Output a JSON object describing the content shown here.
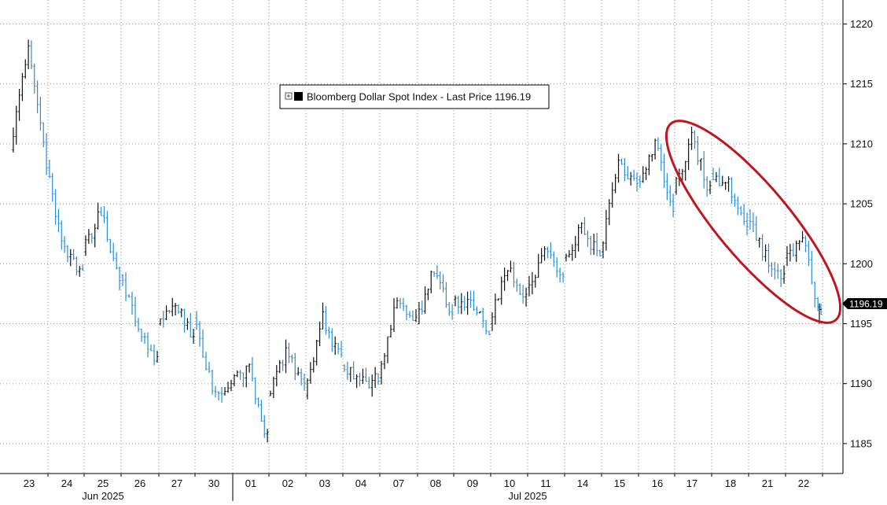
{
  "chart_data": {
    "type": "candlestick",
    "legend": {
      "label": "Bloomberg Dollar Spot Index - Last Price 1196.19",
      "placement": "top-center"
    },
    "last_price": 1196.19,
    "last_price_label": "1196.19",
    "y_axis": {
      "position": "right",
      "range": [
        1182.5,
        1222
      ],
      "ticks": [
        1185,
        1190,
        1195,
        1200,
        1205,
        1210,
        1215,
        1220
      ],
      "tick_labels": [
        "1185",
        "1190",
        "1195",
        "1200",
        "1205",
        "1210",
        "1215",
        "1220"
      ]
    },
    "x_axis": {
      "day_labels": [
        "23",
        "24",
        "25",
        "26",
        "27",
        "30",
        "01",
        "02",
        "03",
        "04",
        "07",
        "08",
        "09",
        "10",
        "11",
        "14",
        "15",
        "16",
        "17",
        "18",
        "21",
        "22"
      ],
      "month_labels": [
        "Jun 2025",
        "Jul 2025"
      ]
    },
    "grid": "dotted",
    "annotation": {
      "shape": "ellipse",
      "color": "#c0161d",
      "note": "highlights decline from 17 to 22"
    },
    "colors": {
      "up": "#111111",
      "down": "#2b8ed6",
      "annotation": "#c0161d"
    },
    "daily_path": [
      [
        1209.5,
        1218.5,
        1208.0
      ],
      [
        1208.0,
        1201.0,
        1199.5
      ],
      [
        1201.0,
        1204.5,
        1198.5
      ],
      [
        1199.0,
        1195.0,
        1192.0
      ],
      [
        1195.0,
        1196.5,
        1193.5
      ],
      [
        1195.5,
        1190.0,
        1189.5
      ],
      [
        1190.0,
        1191.0,
        1185.5
      ],
      [
        1189.0,
        1192.5,
        1190.0
      ],
      [
        1189.0,
        1195.5,
        1192.0
      ],
      [
        1191.5,
        1190.0,
        1190.5
      ],
      [
        1190.5,
        1197.0,
        1195.0
      ],
      [
        1195.0,
        1199.5,
        1195.5
      ],
      [
        1197.0,
        1196.5,
        1194.5
      ],
      [
        1195.0,
        1200.0,
        1197.0
      ],
      [
        1198.0,
        1201.0,
        1199.0
      ],
      [
        1200.5,
        1203.0,
        1200.5
      ],
      [
        1201.0,
        1208.5,
        1206.5
      ],
      [
        1207.0,
        1210.0,
        1204.0
      ],
      [
        1206.0,
        1210.5,
        1206.0
      ],
      [
        1207.5,
        1206.5,
        1202.5
      ],
      [
        1204.5,
        1200.5,
        1199.0
      ],
      [
        1200.5,
        1202.0,
        1195.5
      ]
    ]
  }
}
